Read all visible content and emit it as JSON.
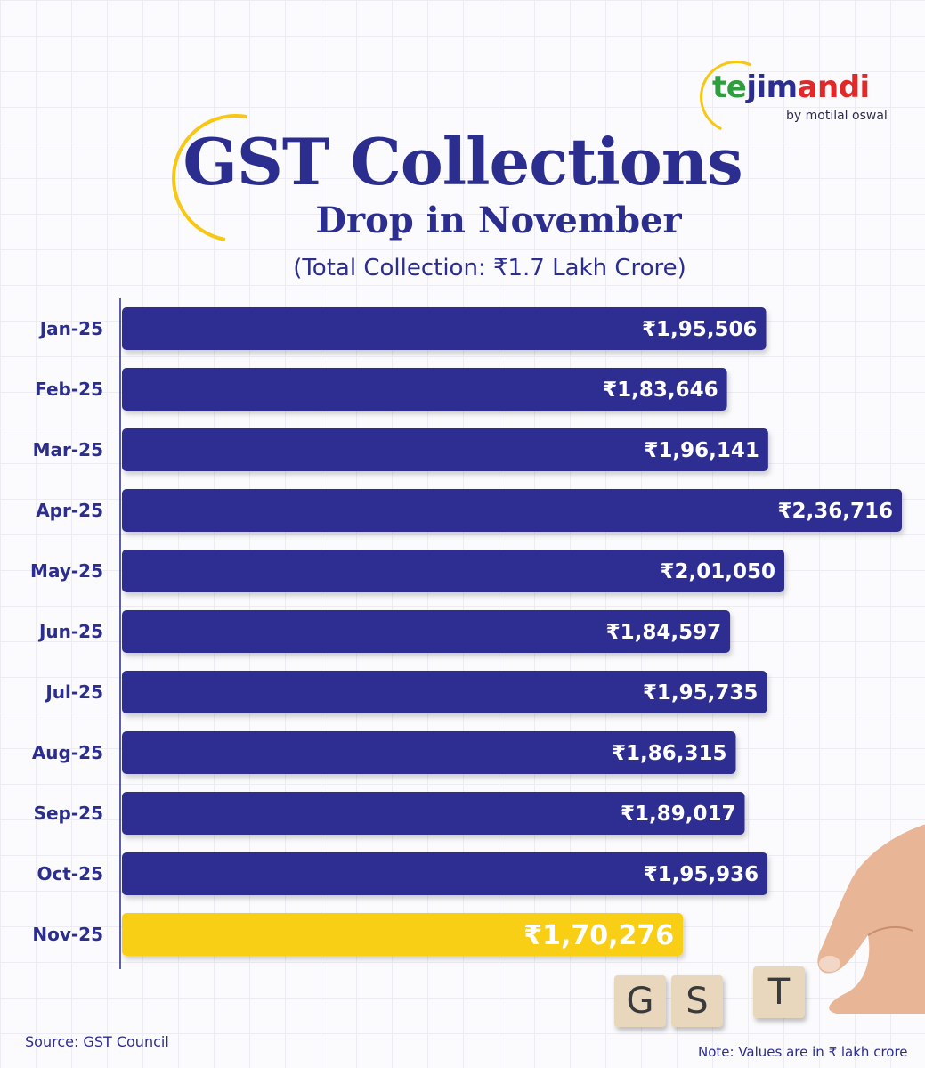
{
  "brand": {
    "part1": "te",
    "part2": "jim",
    "part3": "andi",
    "tagline": "by motilal oswal"
  },
  "header": {
    "title": "GST Collections",
    "subtitle": "Drop in November",
    "total_note": "(Total Collection: ₹1.7 Lakh Crore)"
  },
  "footer": {
    "source": "Source: GST Council",
    "note": "Note: Values are in ₹ lakh crore"
  },
  "illustration": {
    "tile_letters": [
      "G",
      "S",
      "T"
    ]
  },
  "colors": {
    "bar": "#2e2d92",
    "highlight_bar": "#f9cf14",
    "title": "#2b2d8f",
    "accent_ring": "#f7c713"
  },
  "chart_data": {
    "type": "bar",
    "orientation": "horizontal",
    "categories": [
      "Jan-25",
      "Feb-25",
      "Mar-25",
      "Apr-25",
      "May-25",
      "Jun-25",
      "Jul-25",
      "Aug-25",
      "Sep-25",
      "Oct-25",
      "Nov-25"
    ],
    "values": [
      195506,
      183646,
      196141,
      236716,
      201050,
      184597,
      195735,
      186315,
      189017,
      195936,
      170276
    ],
    "labels": [
      "₹1,95,506",
      "₹1,83,646",
      "₹1,96,141",
      "₹2,36,716",
      "₹2,01,050",
      "₹1,84,597",
      "₹1,95,735",
      "₹1,86,315",
      "₹1,89,017",
      "₹1,95,936",
      "₹1,70,276"
    ],
    "highlight_index": 10,
    "xlim": [
      0,
      236716
    ]
  }
}
